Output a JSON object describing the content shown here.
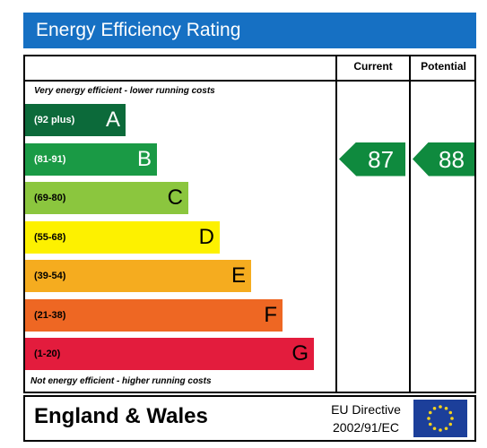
{
  "title": "Energy Efficiency Rating",
  "columns": {
    "current": "Current",
    "potential": "Potential"
  },
  "notes": {
    "top": "Very energy efficient - lower running costs",
    "bottom": "Not energy efficient - higher running costs"
  },
  "footer": {
    "country": "England & Wales",
    "directive_line1": "EU Directive",
    "directive_line2": "2002/91/EC"
  },
  "colors": {
    "header": "#1670c3",
    "arrow": "#0f8a3e",
    "eu_flag": "#1c3f9a",
    "eu_stars": "#f5d21e"
  },
  "icons": {
    "flag": "eu-flag-icon"
  },
  "chart_data": {
    "type": "bar",
    "title": "Energy Efficiency Rating",
    "bands": [
      {
        "letter": "A",
        "range": "(92 plus)",
        "min": 92,
        "max": 100,
        "color": "#0c6a3a",
        "text_color": "#ffffff"
      },
      {
        "letter": "B",
        "range": "(81-91)",
        "min": 81,
        "max": 91,
        "color": "#1a9a45",
        "text_color": "#ffffff"
      },
      {
        "letter": "C",
        "range": "(69-80)",
        "min": 69,
        "max": 80,
        "color": "#8bc63e",
        "text_color": "#000000"
      },
      {
        "letter": "D",
        "range": "(55-68)",
        "min": 55,
        "max": 68,
        "color": "#fdf100",
        "text_color": "#000000"
      },
      {
        "letter": "E",
        "range": "(39-54)",
        "min": 39,
        "max": 54,
        "color": "#f5ac1f",
        "text_color": "#000000"
      },
      {
        "letter": "F",
        "range": "(21-38)",
        "min": 21,
        "max": 38,
        "color": "#ee6723",
        "text_color": "#000000"
      },
      {
        "letter": "G",
        "range": "(1-20)",
        "min": 1,
        "max": 20,
        "color": "#e31c3d",
        "text_color": "#000000"
      }
    ],
    "series": [
      {
        "name": "Current",
        "value": 87
      },
      {
        "name": "Potential",
        "value": 88
      }
    ]
  }
}
